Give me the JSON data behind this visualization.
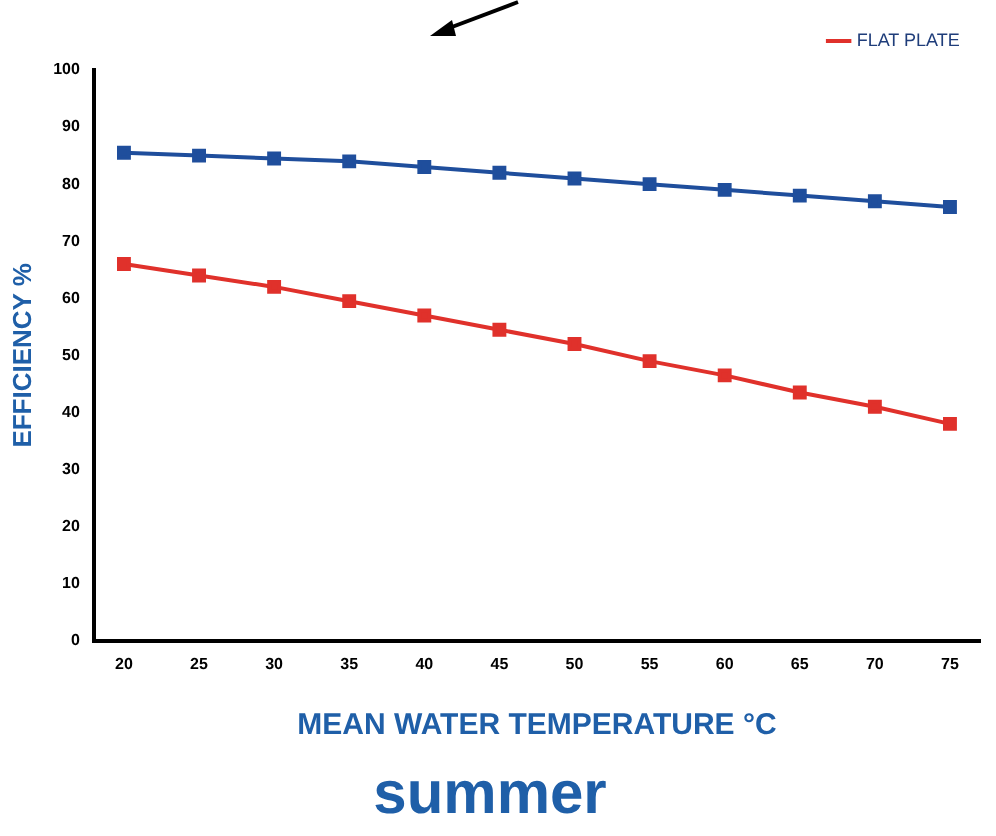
{
  "chart_data": {
    "type": "line",
    "title": "summer",
    "xlabel": "MEAN WATER TEMPERATURE °C",
    "ylabel": "EFFICIENCY %",
    "x": [
      20,
      25,
      30,
      35,
      40,
      45,
      50,
      55,
      60,
      65,
      70,
      75
    ],
    "series": [
      {
        "color": "#1f4e9c",
        "values": [
          85.5,
          85,
          84.5,
          84,
          83,
          82,
          81,
          80,
          79,
          78,
          77,
          76
        ]
      },
      {
        "name": "FLAT PLATE",
        "color": "#e0312b",
        "values": [
          66,
          64,
          62,
          59.5,
          57,
          54.5,
          52,
          49,
          46.5,
          43.5,
          41,
          38
        ]
      }
    ],
    "xlim": [
      18,
      77
    ],
    "xticks": [
      20,
      25,
      30,
      35,
      40,
      45,
      50,
      55,
      60,
      65,
      70,
      75
    ],
    "ylim": [
      0,
      100
    ],
    "yticks": [
      0,
      10,
      20,
      30,
      40,
      50,
      60,
      70,
      80,
      90,
      100
    ],
    "legend": "top right",
    "marker": "square",
    "line_style": "solid"
  }
}
